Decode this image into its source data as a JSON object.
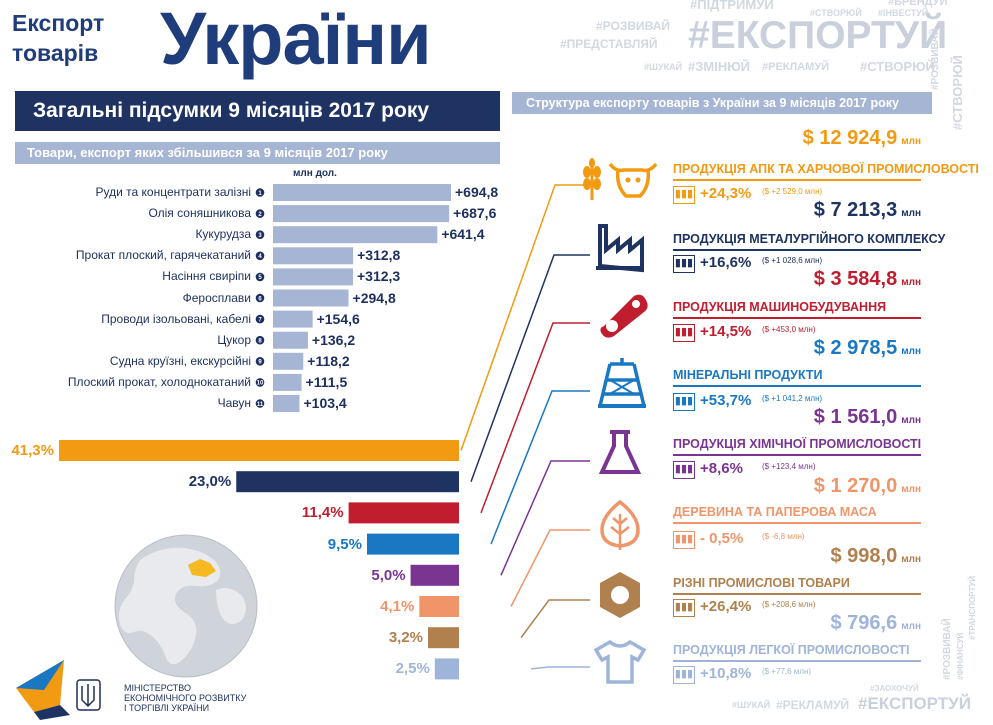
{
  "header": {
    "title_line1": "Експорт",
    "title_line2": "товарів",
    "title_big": "України",
    "hashtag_main": "#ЕКСПОРТУЙ",
    "hashtags": [
      "#БРЕНДУЙ",
      "#ПІДТРИМУЙ",
      "#СТВОРЮЙ",
      "#ІНВЕСТУЙ",
      "#РОЗВИВАЙ",
      "#ПРЕДСТАВЛЯЙ",
      "#ШУКАЙ",
      "#ЗМІНЮЙ",
      "#РЕКЛАМУЙ",
      "#СТВОРЮЙ",
      "#РОЗВИВАЙ",
      "#СТВОРЮЙ"
    ]
  },
  "banner": "Загальні підсумки 9 місяців 2017 року",
  "subbanner": "Товари, експорт яких збільшився за 9 місяців 2017 року",
  "right_banner": "Структура експорту товарів з України за 9 місяців 2017 року",
  "footer_hashtags": [
    "#ШУКАЙ",
    "#РЕКЛАМУЙ",
    "#ЕКСПОРТУЙ",
    "#ЗАОХОЧУЙ",
    "#РОЗВИВАЙ",
    "#ФІНАНСУЙ",
    "#ТРАНСПОРТУЙ"
  ],
  "ministry": [
    "МІНІСТЕРСТВО",
    "ЕКОНОМІЧНОГО РОЗВИТКУ",
    "І ТОРГІВЛІ УКРАЇНИ"
  ],
  "icons": [
    "wheat-icon",
    "cow-icon",
    "factory-icon",
    "gear-icon",
    "oil-derrick-icon",
    "flask-icon",
    "leaf-icon",
    "hex-nut-icon",
    "tshirt-icon",
    "globe-icon",
    "trident-icon"
  ],
  "colors": {
    "navy": "#1e3361",
    "orange": "#f19a12",
    "red": "#c01e2e",
    "blue": "#1a78c2",
    "purple": "#7a3593",
    "salmon": "#f0956a",
    "brown": "#b0804e",
    "lightblue": "#9fb4d9",
    "bar": "#a6b5d3"
  },
  "chart_data": [
    {
      "type": "bar",
      "orientation": "horizontal",
      "unit": "млн дол.",
      "categories": [
        "Руди та концентрати залізні",
        "Олія соняшникова",
        "Кукурудза",
        "Прокат плоский, гарячекатаний",
        "Насіння свиріпи",
        "Феросплави",
        "Проводи ізольовані, кабелі",
        "Цукор",
        "Судна круїзні, екскурсійні",
        "Плоский прокат, холоднокатаний",
        "Чавун"
      ],
      "ranks": [
        "1",
        "2",
        "3",
        "4",
        "5",
        "6",
        "7",
        "8",
        "9",
        "10",
        "11"
      ],
      "values": [
        694.8,
        687.6,
        641.4,
        312.8,
        312.3,
        294.8,
        154.6,
        136.2,
        118.2,
        111.5,
        103.4
      ],
      "labels": [
        "+694,8",
        "+687,6",
        "+641,4",
        "+312,8",
        "+312,3",
        "+294,8",
        "+154,6",
        "+136,2",
        "+118,2",
        "+111,5",
        "+103,4"
      ]
    },
    {
      "type": "bar",
      "orientation": "horizontal",
      "values": [
        41.3,
        23.0,
        11.4,
        9.5,
        5.0,
        4.1,
        3.2,
        2.5
      ],
      "labels": [
        "41,3%",
        "23,0%",
        "11,4%",
        "9,5%",
        "5,0%",
        "4,1%",
        "3,2%",
        "2,5%"
      ],
      "colors": [
        "#f19a12",
        "#1e3361",
        "#c01e2e",
        "#1a78c2",
        "#7a3593",
        "#f0956a",
        "#b0804e",
        "#9fb4d9"
      ]
    }
  ],
  "categories": [
    {
      "amount": "$ 12 924,9",
      "unit": "млн",
      "name": "ПРОДУКЦІЯ АПК ТА ХАРЧОВОЇ ПРОМИСЛОВОСТІ",
      "growth": "+24,3%",
      "abs": "($ +2 529,0 млн)",
      "color": "#f19a12"
    },
    {
      "amount": "$ 7 213,3",
      "unit": "млн",
      "name": "ПРОДУКЦІЯ МЕТАЛУРГІЙНОГО КОМПЛЕКСУ",
      "growth": "+16,6%",
      "abs": "($ +1 028,6 млн)",
      "color": "#1e3361"
    },
    {
      "amount": "$ 3 584,8",
      "unit": "млн",
      "name": "ПРОДУКЦІЯ МАШИНОБУДУВАННЯ",
      "growth": "+14,5%",
      "abs": "($ +453,0 млн)",
      "color": "#c01e2e"
    },
    {
      "amount": "$ 2 978,5",
      "unit": "млн",
      "name": "МІНЕРАЛЬНІ ПРОДУКТИ",
      "growth": "+53,7%",
      "abs": "($ +1 041,2 млн)",
      "color": "#1a78c2"
    },
    {
      "amount": "$ 1 561,0",
      "unit": "млн",
      "name": "ПРОДУКЦІЯ ХІМІЧНОЇ ПРОМИСЛОВОСТІ",
      "growth": "+8,6%",
      "abs": "($ +123,4 млн)",
      "color": "#7a3593"
    },
    {
      "amount": "$ 1 270,0",
      "unit": "млн",
      "name": "ДЕРЕВИНА ТА ПАПЕРОВА МАСА",
      "growth": "- 0,5%",
      "abs": "($ -6,8 млн)",
      "color": "#f0956a"
    },
    {
      "amount": "$ 998,0",
      "unit": "млн",
      "name": "РІЗНІ ПРОМИСЛОВІ ТОВАРИ",
      "growth": "+26,4%",
      "abs": "($ +208,6 млн)",
      "color": "#b0804e"
    },
    {
      "amount": "$ 796,6",
      "unit": "млн",
      "name": "ПРОДУКЦІЯ ЛЕГКОЇ ПРОМИСЛОВОСТІ",
      "growth": "+10,8%",
      "abs": "($ +77,6 млн)",
      "color": "#9fb4d9"
    }
  ]
}
